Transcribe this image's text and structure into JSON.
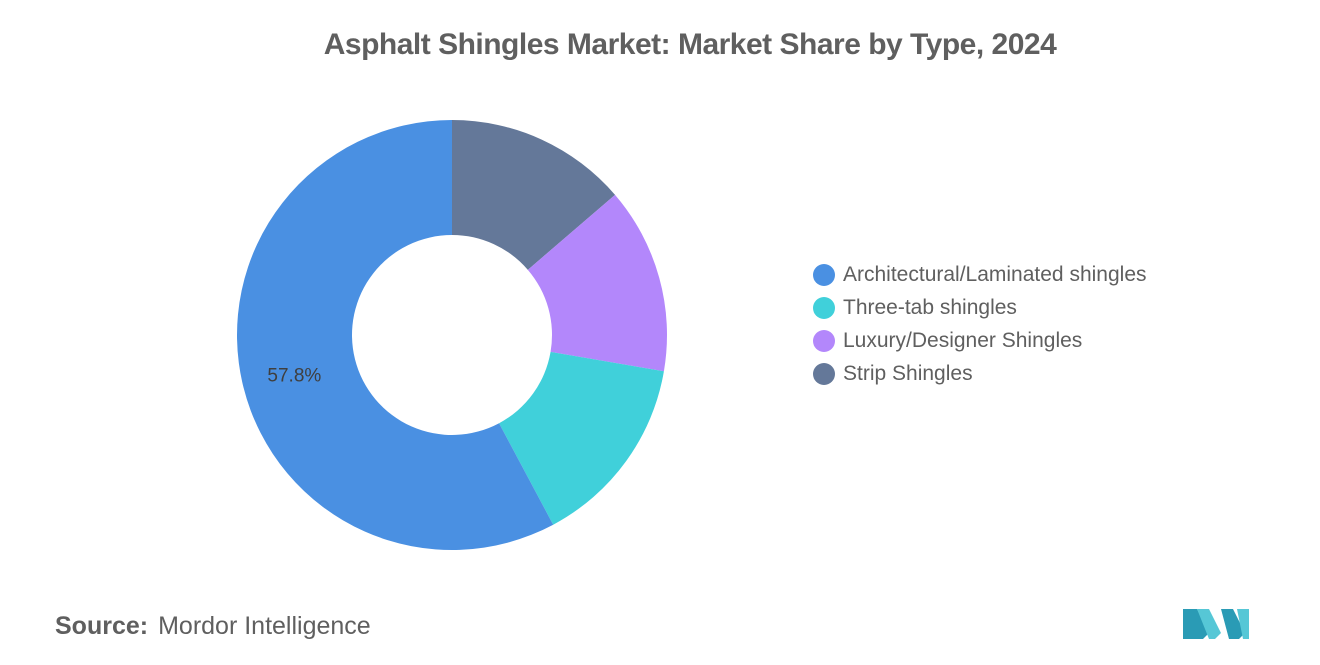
{
  "chart_data": {
    "type": "pie",
    "title": "Asphalt Shingles Market: Market Share by Type, 2024",
    "donut": true,
    "categories": [
      "Architectural/Laminated shingles",
      "Three-tab shingles",
      "Luxury/Designer Shingles",
      "Strip Shingles"
    ],
    "values": [
      57.8,
      14.5,
      14.0,
      13.7
    ],
    "colors": [
      "#4a90e2",
      "#40d0da",
      "#b387fb",
      "#647899"
    ],
    "data_labels": [
      "57.8%",
      "",
      "",
      ""
    ],
    "legend_position": "right"
  },
  "source": {
    "label": "Source:",
    "text": "Mordor Intelligence"
  },
  "logo": {
    "name": "mordor-intelligence-logo",
    "colors": [
      "#2a9bb5",
      "#56c7d6"
    ]
  }
}
